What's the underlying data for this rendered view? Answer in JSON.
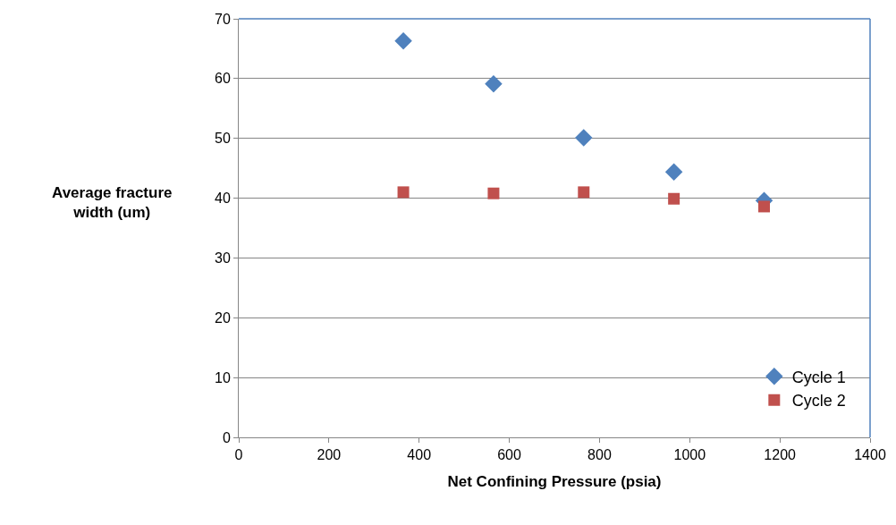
{
  "chart_data": {
    "type": "scatter",
    "xlabel": "Net Confining Pressure (psia)",
    "ylabel": "Average fracture width (um)",
    "x": [
      365,
      565,
      765,
      965,
      1165
    ],
    "series": [
      {
        "name": "Cycle 1",
        "color": "#4f81bd",
        "marker": "diamond",
        "values": [
          66.3,
          59.1,
          50.1,
          44.4,
          39.6
        ]
      },
      {
        "name": "Cycle 2",
        "color": "#c0504d",
        "marker": "square",
        "values": [
          41.0,
          40.8,
          41.0,
          39.9,
          38.6
        ]
      }
    ],
    "xlim": [
      0,
      1400
    ],
    "xticks": [
      0,
      200,
      400,
      600,
      800,
      1000,
      1200,
      1400
    ],
    "ylim": [
      0,
      70
    ],
    "yticks": [
      0,
      10,
      20,
      30,
      40,
      50,
      60,
      70
    ],
    "grid": "y",
    "legend": "bottom right"
  }
}
